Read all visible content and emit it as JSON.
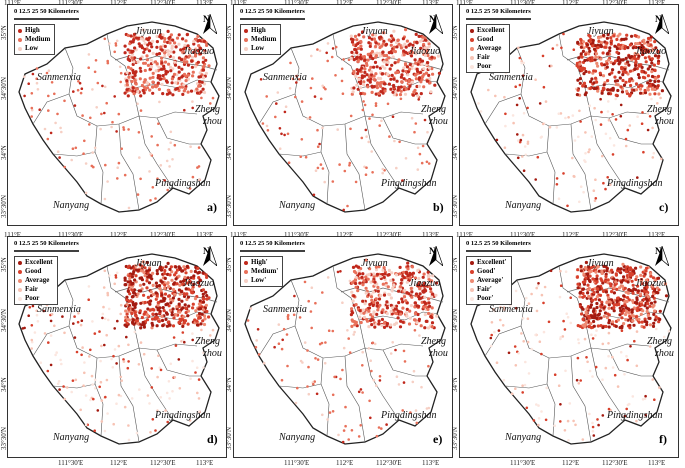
{
  "scale": {
    "ticks": [
      "0",
      "12.5",
      "25",
      "50"
    ],
    "unit": "Kilometers"
  },
  "north_label": "N",
  "top_lon": [
    "111°E",
    "111°30'E",
    "112°E",
    "112°30'E",
    "113°E"
  ],
  "bottom_lon": [
    "111°30'E",
    "112°E",
    "112°30'E",
    "113°E"
  ],
  "left_lat": [
    "35°N",
    "34°30'N",
    "34°N",
    "33°30'N"
  ],
  "cities": {
    "jiyuan": "Jiyuan",
    "jiaozuo": "Jiaozuo",
    "sanmenxia": "Sanmenxia",
    "zheng": "Zheng",
    "zhou": "zhou",
    "pingdingshan": "Pingdingshan",
    "nanyang": "Nanyang"
  },
  "panels": [
    {
      "id": "a",
      "label": "a)",
      "legend": [
        "High",
        "Medium",
        "Low"
      ]
    },
    {
      "id": "b",
      "label": "b)",
      "legend": [
        "High",
        "Medium",
        "Low"
      ]
    },
    {
      "id": "c",
      "label": "c)",
      "legend": [
        "Excellent",
        "Good",
        "Average",
        "Fair",
        "Poor"
      ]
    },
    {
      "id": "d",
      "label": "d)",
      "legend": [
        "Excellent",
        "Good",
        "Average",
        "Fair",
        "Poor"
      ]
    },
    {
      "id": "e",
      "label": "e)",
      "legend": [
        "High'",
        "Medium'",
        "Low'"
      ]
    },
    {
      "id": "f",
      "label": "f)",
      "legend": [
        "Excellent'",
        "Good'",
        "Average'",
        "Fair'",
        "Poor'"
      ]
    }
  ],
  "colors": {
    "level3": [
      "#c0281c",
      "#e8705a",
      "#f6cfc4"
    ],
    "level5": [
      "#a41a10",
      "#d8402c",
      "#ee8a72",
      "#f7c3b4",
      "#fbe6df"
    ],
    "boundary": "#555555",
    "river": "#6a6a6a"
  }
}
